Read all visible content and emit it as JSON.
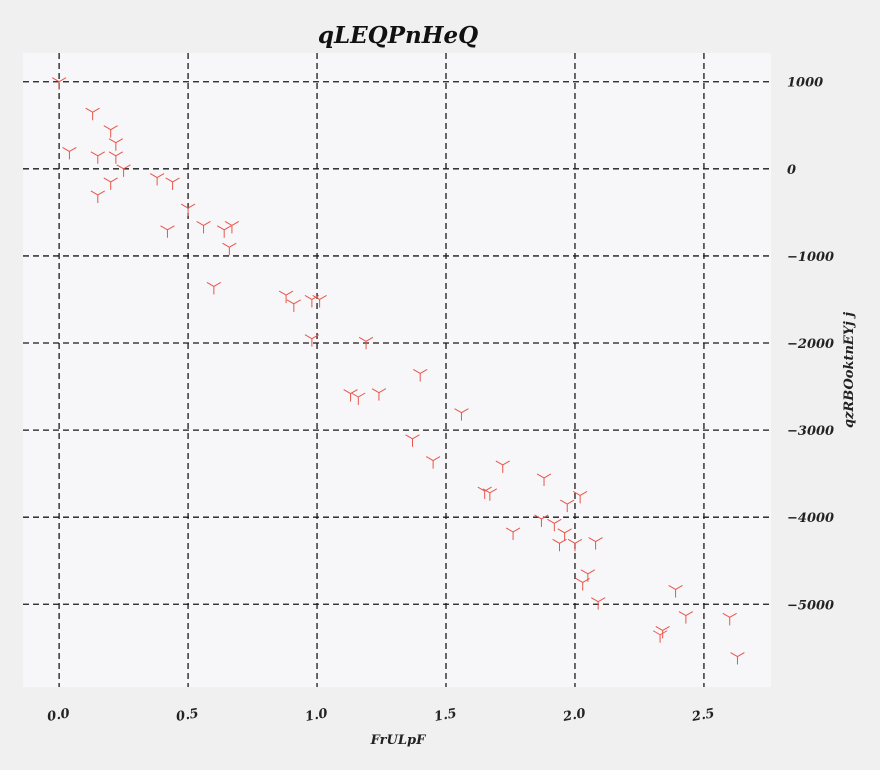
{
  "chart_data": {
    "type": "scatter",
    "title": "qLEQPnHeQ",
    "xlabel": "FrULpF",
    "ylabel": "qzRBOoktnEYj j",
    "xlim": [
      -0.14,
      2.76
    ],
    "ylim": [
      -5950,
      1330
    ],
    "x_ticks": [
      0.0,
      0.5,
      1.0,
      1.5,
      2.0,
      2.5
    ],
    "x_tick_labels": [
      "0.0",
      "0.5",
      "1.0",
      "1.5",
      "2.0",
      "2.5"
    ],
    "y_ticks": [
      1000,
      0,
      -1000,
      -2000,
      -3000,
      -4000,
      -5000
    ],
    "y_tick_labels": [
      "1000",
      "0",
      "−1000",
      "−2000",
      "−3000",
      "−4000",
      "−5000"
    ],
    "y_axis_side": "right",
    "grid": true,
    "marker": "tri-down",
    "colors": {
      "marker": "#e8554a",
      "grid": "#1a1a1a",
      "plot_bg": "#f7f7f9",
      "page_bg": "#f0f0f0"
    },
    "series": [
      {
        "x": [
          0.0,
          0.13,
          0.2,
          0.22,
          0.22,
          0.04,
          0.15,
          0.25,
          0.2,
          0.15,
          0.38,
          0.44,
          0.5,
          0.42,
          0.56,
          0.64,
          0.67,
          0.66,
          0.6,
          0.88,
          0.91,
          0.98,
          1.01,
          1.19,
          0.98,
          1.4,
          1.13,
          1.16,
          1.24,
          1.56,
          1.37,
          1.45,
          1.72,
          1.65,
          1.67,
          1.88,
          2.02,
          1.97,
          1.76,
          1.87,
          1.92,
          1.96,
          1.94,
          2.0,
          2.08,
          2.05,
          2.03,
          2.09,
          2.39,
          2.43,
          2.34,
          2.33,
          2.6,
          2.63
        ],
        "y": [
          1000,
          650,
          450,
          300,
          150,
          200,
          150,
          0,
          -150,
          -300,
          -100,
          -150,
          -450,
          -700,
          -650,
          -700,
          -650,
          -900,
          -1350,
          -1450,
          -1550,
          -1500,
          -1500,
          -1980,
          -1950,
          -2350,
          -2580,
          -2620,
          -2570,
          -2800,
          -3100,
          -3350,
          -3400,
          -3700,
          -3720,
          -3550,
          -3750,
          -3850,
          -4170,
          -4020,
          -4070,
          -4180,
          -4300,
          -4300,
          -4280,
          -4650,
          -4750,
          -4970,
          -4830,
          -5130,
          -5300,
          -5350,
          -5150,
          -5600
        ]
      }
    ]
  }
}
